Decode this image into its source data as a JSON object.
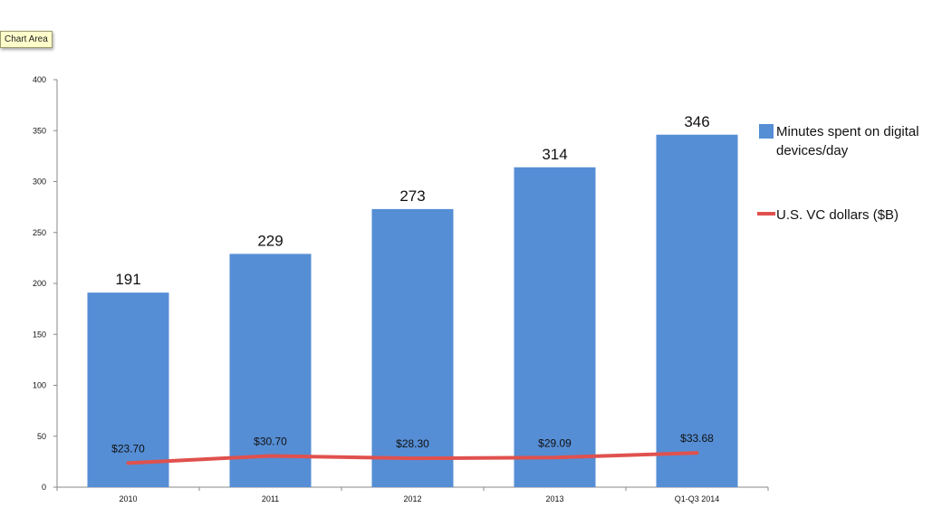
{
  "tooltip": "Chart Area",
  "chart_data": {
    "type": "bar",
    "categories": [
      "2010",
      "2011",
      "2012",
      "2013",
      "Q1-Q3 2014"
    ],
    "ylim": [
      0,
      400
    ],
    "yticks": [
      0,
      50,
      100,
      150,
      200,
      250,
      300,
      350,
      400
    ],
    "grid": false,
    "legend_position": "right",
    "series": [
      {
        "name": "Minutes spent on digital devices/day",
        "kind": "bar",
        "color": "#558ed5",
        "values": [
          191,
          229,
          273,
          314,
          346
        ],
        "labels": [
          "191",
          "229",
          "273",
          "314",
          "346"
        ]
      },
      {
        "name": "U.S. VC dollars ($B)",
        "kind": "line",
        "color": "#e0514e",
        "values": [
          23.7,
          30.7,
          28.3,
          29.09,
          33.68
        ],
        "labels": [
          "$23.70",
          "$30.70",
          "$28.30",
          "$29.09",
          "$33.68"
        ]
      }
    ],
    "legend": {
      "bar_lines": [
        "Minutes spent on digital",
        "devices/day"
      ],
      "line_text": "U.S. VC dollars ($B)"
    }
  }
}
